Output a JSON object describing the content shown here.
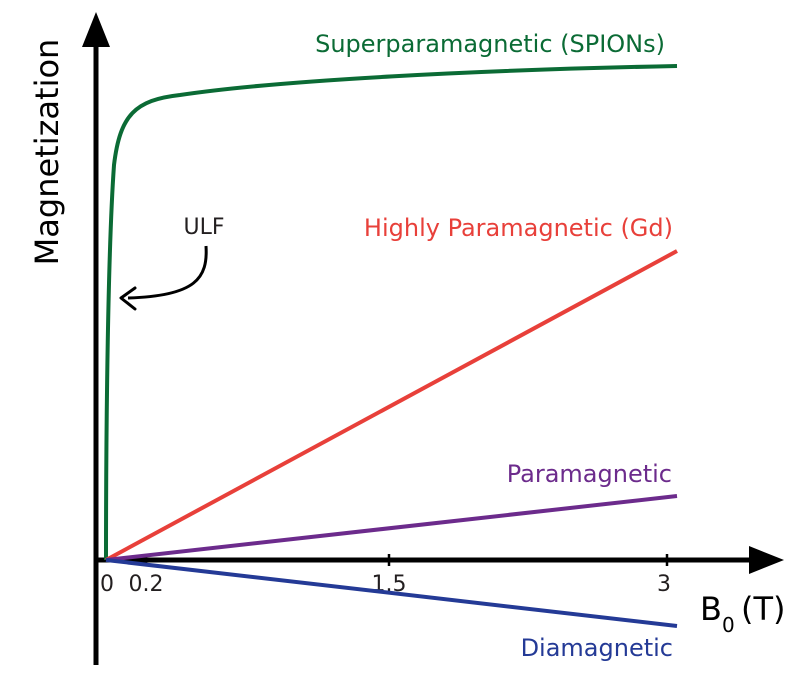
{
  "axes": {
    "y_label": "Magnetization",
    "x_label_main": "B",
    "x_label_sub": "0",
    "x_label_unit": "(T)",
    "x_ticks": [
      "0",
      "0.2",
      "1.5",
      "3"
    ]
  },
  "annotation": {
    "text": "ULF"
  },
  "series": [
    {
      "name": "Superparamagnetic (SPIONs)",
      "color": "#0b6b35",
      "shape": "saturating"
    },
    {
      "name": "Highly Paramagnetic (Gd)",
      "color": "#e8403a",
      "shape": "linear",
      "value_at_3": 0.62
    },
    {
      "name": "Paramagnetic",
      "color": "#6c2b8c",
      "shape": "linear",
      "value_at_3": 0.13
    },
    {
      "name": "Diamagnetic",
      "color": "#243a96",
      "shape": "linear",
      "value_at_3": -0.13
    }
  ],
  "colors": {
    "axis": "#000000",
    "text": "#231f20"
  }
}
